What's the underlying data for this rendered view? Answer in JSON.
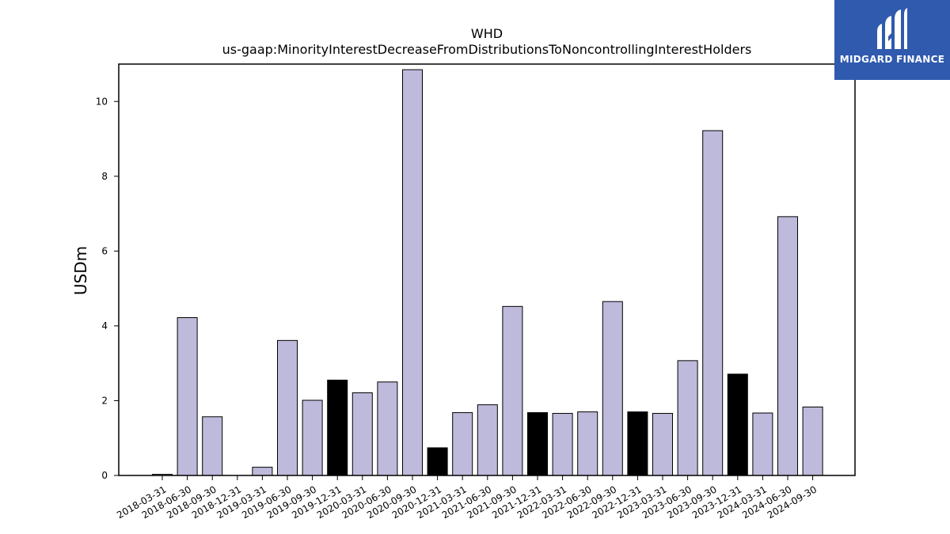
{
  "chart_data": {
    "type": "bar",
    "title": "WHD",
    "subtitle": "us-gaap:MinorityInterestDecreaseFromDistributionsToNoncontrollingInterestHolders",
    "ylabel": "USDm",
    "xlabel": "",
    "ylim": [
      0,
      11
    ],
    "yticks": [
      0,
      2,
      4,
      6,
      8,
      10
    ],
    "grid": false,
    "categories": [
      "2018-03-31",
      "2018-06-30",
      "2018-09-30",
      "2018-12-31",
      "2019-03-31",
      "2019-06-30",
      "2019-09-30",
      "2019-12-31",
      "2020-03-31",
      "2020-06-30",
      "2020-09-30",
      "2020-12-31",
      "2021-03-31",
      "2021-06-30",
      "2021-09-30",
      "2021-12-31",
      "2022-03-31",
      "2022-06-30",
      "2022-09-30",
      "2022-12-31",
      "2023-03-31",
      "2023-06-30",
      "2023-09-30",
      "2023-12-31",
      "2024-03-31",
      "2024-06-30",
      "2024-09-30"
    ],
    "values": [
      0.03,
      4.22,
      1.57,
      0,
      0.22,
      3.61,
      2.01,
      2.55,
      2.21,
      2.5,
      10.85,
      0.74,
      1.68,
      1.89,
      4.52,
      1.68,
      1.66,
      1.7,
      4.65,
      1.7,
      1.66,
      3.07,
      9.22,
      2.71,
      1.67,
      6.92,
      1.83
    ],
    "highlight_quarter": "12-31",
    "colors": {
      "bar": "#bebadb",
      "bar_highlight": "#000000",
      "edge": "#000000",
      "axis": "#000000"
    }
  },
  "logo": {
    "text": "MIDGARD FINANCE",
    "background": "#2f5aae"
  }
}
